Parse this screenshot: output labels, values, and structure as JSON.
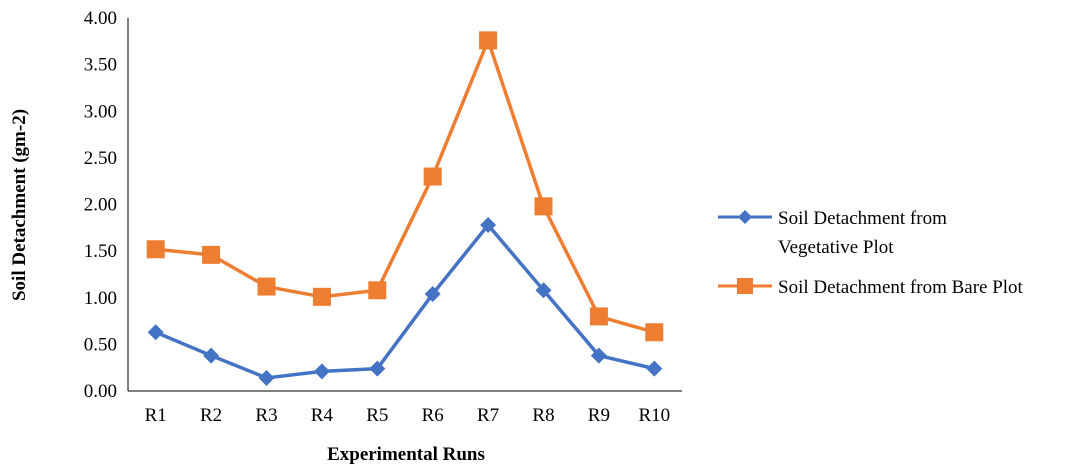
{
  "chart_data": {
    "type": "line",
    "title": "",
    "xlabel": "Experimental Runs",
    "ylabel": "Soil Detachment (gm-2)",
    "categories": [
      "R1",
      "R2",
      "R3",
      "R4",
      "R5",
      "R6",
      "R7",
      "R8",
      "R9",
      "R10"
    ],
    "ylim": [
      0,
      4
    ],
    "yticks": [
      "0.00",
      "0.50",
      "1.00",
      "1.50",
      "2.00",
      "2.50",
      "3.00",
      "3.50",
      "4.00"
    ],
    "grid": false,
    "legend_position": "right",
    "series": [
      {
        "name": "Soil Detachment from Vegetative Plot",
        "name_lines": [
          "Soil Detachment from",
          "Vegetative Plot"
        ],
        "marker": "diamond",
        "color": "#4472C4",
        "values": [
          0.63,
          0.38,
          0.14,
          0.21,
          0.24,
          1.04,
          1.78,
          1.08,
          0.38,
          0.24
        ]
      },
      {
        "name": "Soil Detachment from Bare Plot",
        "name_lines": [
          "Soil Detachment from Bare Plot"
        ],
        "marker": "square",
        "color": "#ED7D31",
        "values": [
          1.52,
          1.46,
          1.12,
          1.01,
          1.08,
          2.3,
          3.76,
          1.98,
          0.8,
          0.63
        ]
      }
    ]
  }
}
